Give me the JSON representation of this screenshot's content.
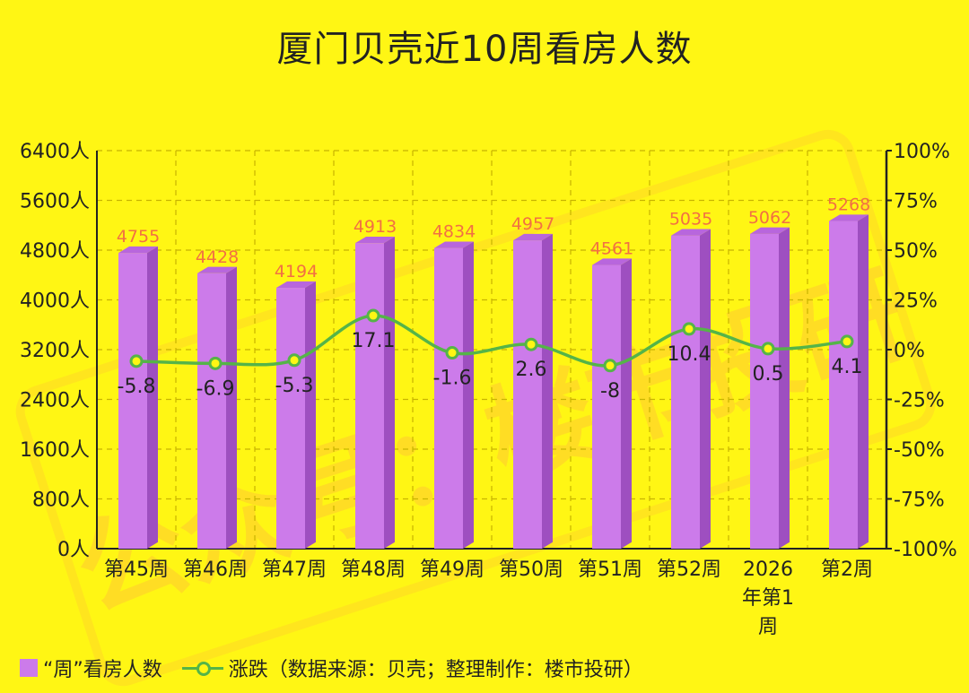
{
  "chart_data": {
    "type": "bar",
    "title": "厦门贝壳近10周看房人数",
    "categories": [
      "第45周",
      "第46周",
      "第47周",
      "第48周",
      "第49周",
      "第50周",
      "第51周",
      "第52周",
      "2026年第1周",
      "第2周"
    ],
    "category_lines": [
      [
        "第45周"
      ],
      [
        "第46周"
      ],
      [
        "第47周"
      ],
      [
        "第48周"
      ],
      [
        "第49周"
      ],
      [
        "第50周"
      ],
      [
        "第51周"
      ],
      [
        "第52周"
      ],
      [
        "2026",
        "年第1",
        "周"
      ],
      [
        "第2周"
      ]
    ],
    "series": [
      {
        "name": "“周”看房人数",
        "type": "bar",
        "axis": "left",
        "values": [
          4755,
          4428,
          4194,
          4913,
          4834,
          4957,
          4561,
          5035,
          5062,
          5268
        ]
      },
      {
        "name": "涨跌（数据来源：贝壳；整理制作：楼市投研）",
        "type": "line",
        "axis": "right",
        "values": [
          -5.8,
          -6.9,
          -5.3,
          17.1,
          -1.6,
          2.6,
          -8,
          10.4,
          0.5,
          4.1
        ]
      }
    ],
    "y_left": {
      "min": 0,
      "max": 6400,
      "ticks": [
        0,
        800,
        1600,
        2400,
        3200,
        4000,
        4800,
        5600,
        6400
      ],
      "tick_suffix": "人"
    },
    "y_right": {
      "min": -100,
      "max": 100,
      "ticks": [
        -100,
        -75,
        -50,
        -25,
        0,
        25,
        50,
        75,
        100
      ],
      "tick_suffix": "%"
    },
    "grid": true,
    "legend_position": "bottom-left",
    "watermark": "公众号：楼市投研",
    "colors": {
      "background": "#FFF614",
      "bar_front": "#CC7BEA",
      "bar_side": "#9E4FC0",
      "bar_top": "#B866DD",
      "line": "#55B448",
      "bar_label": "#F27043",
      "line_label": "#222222",
      "grid": "#C8B400"
    }
  }
}
